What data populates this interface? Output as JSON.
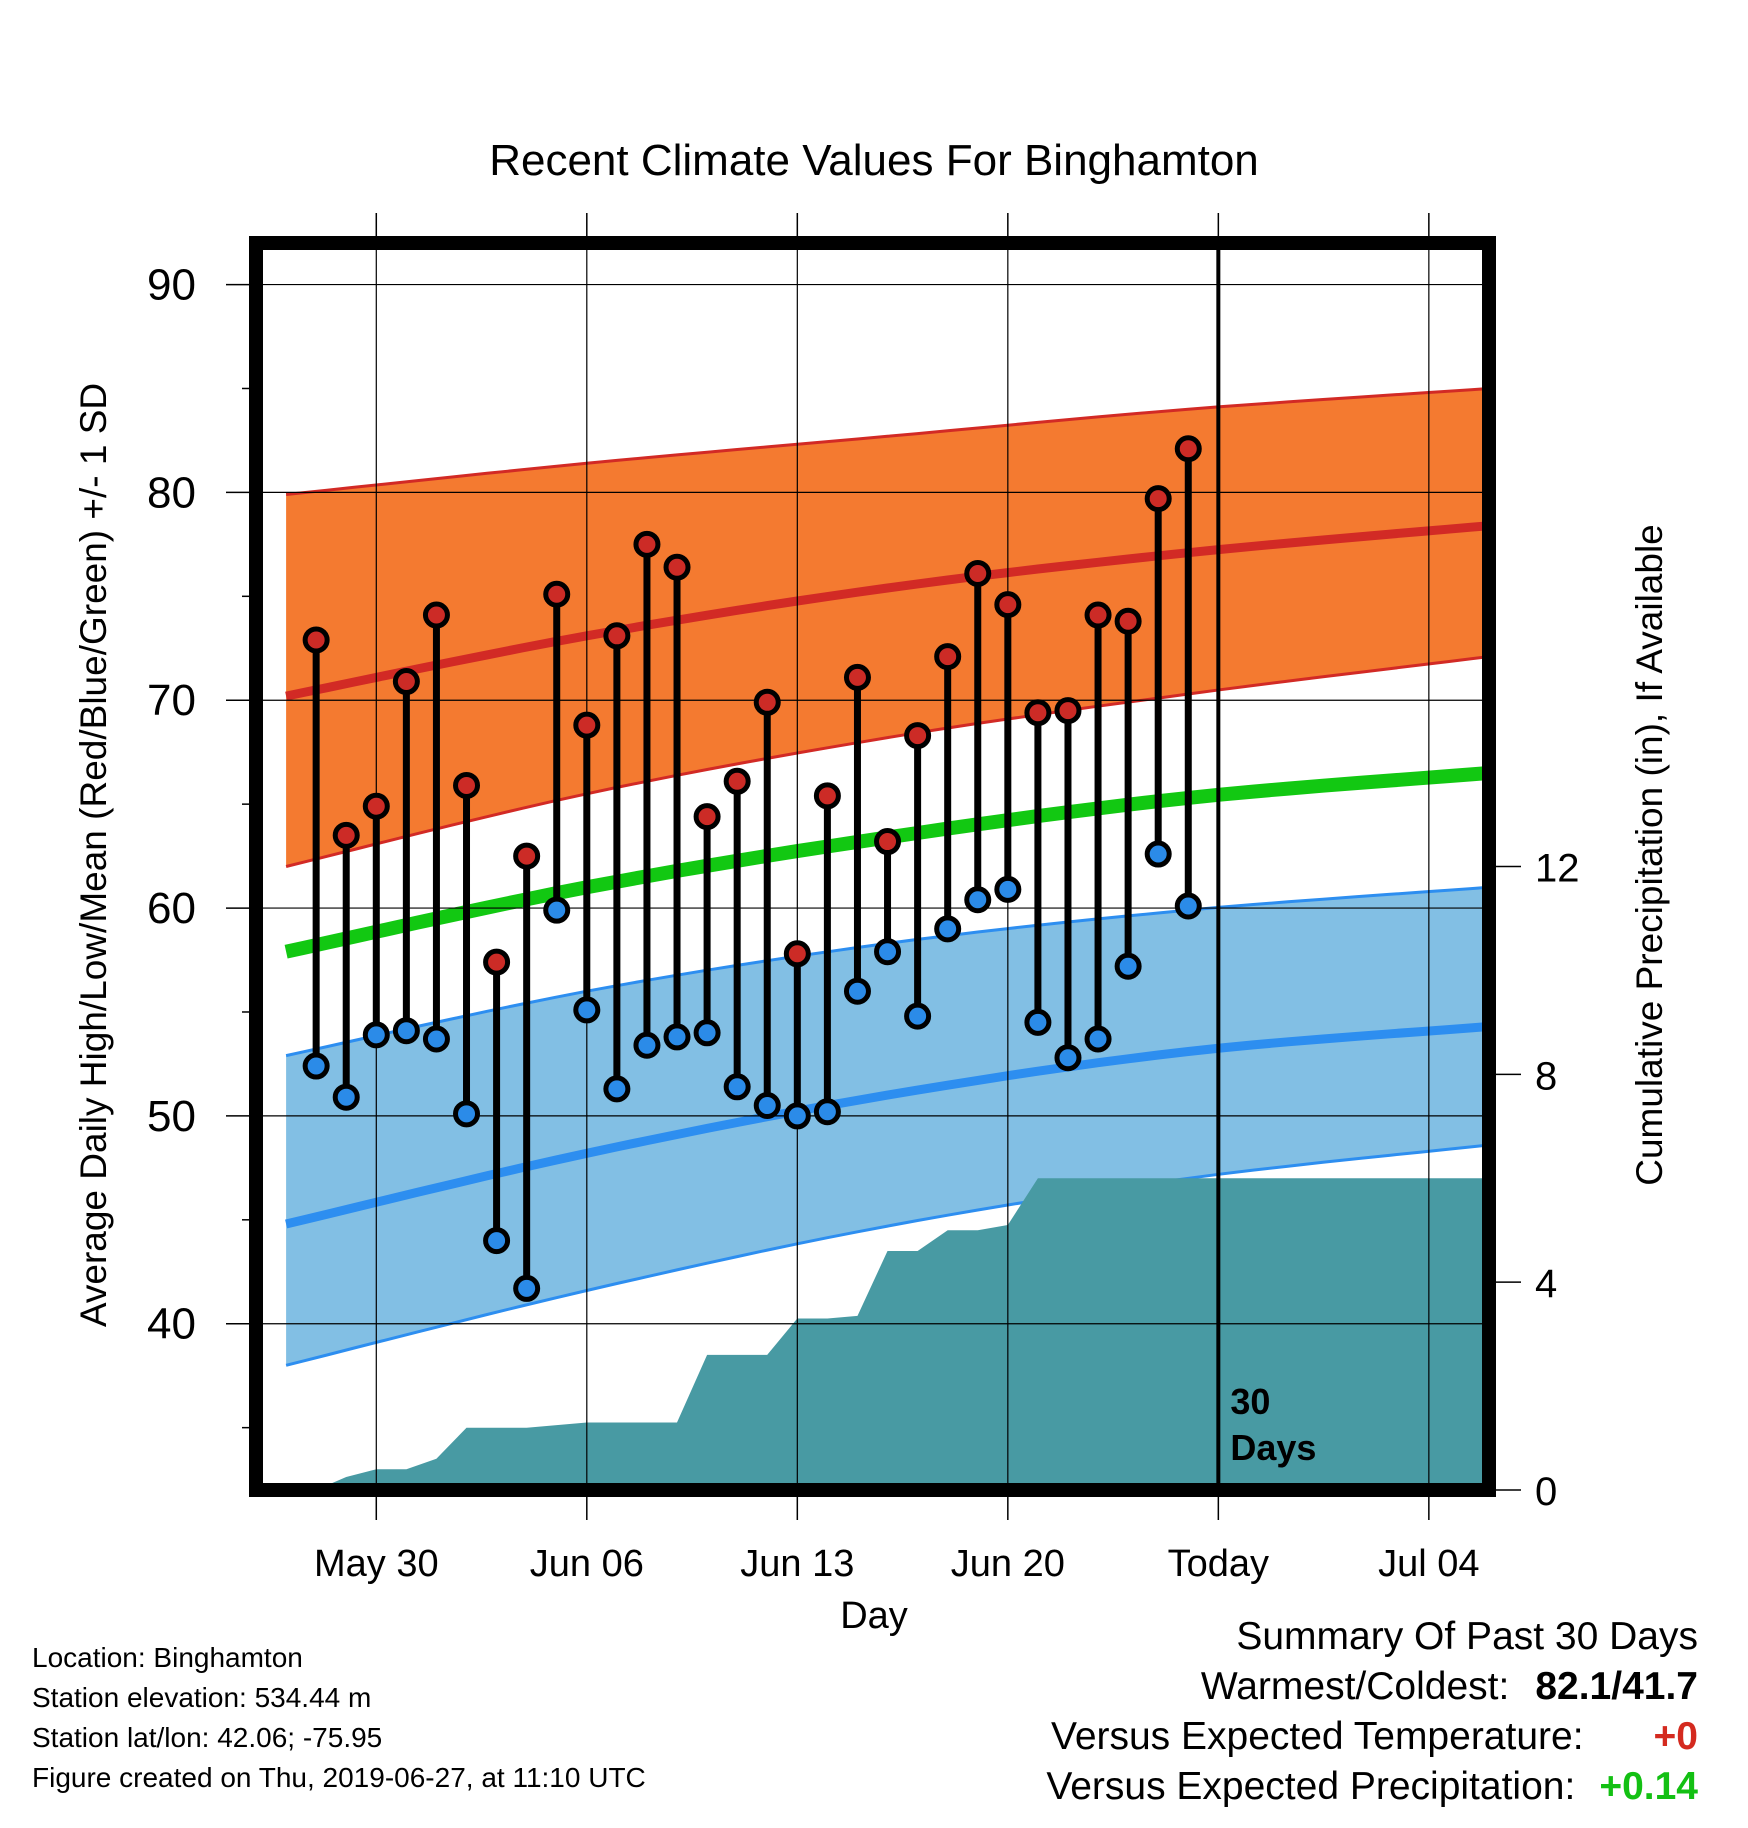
{
  "chart_data": {
    "type": "line",
    "title": "Recent Climate Values For Binghamton",
    "xlabel": "Day",
    "ylabel": "Average Daily High/Low/Mean (Red/Blue/Green) +/- 1 SD",
    "y2label": "Cumulative Precipitation (in), If Available",
    "ylim": [
      32,
      92
    ],
    "y2lim": [
      0,
      24
    ],
    "yticks": [
      40,
      50,
      60,
      70,
      80,
      90
    ],
    "y2ticks": [
      0,
      4,
      8,
      12
    ],
    "xlim": [
      "2019-05-26",
      "2019-07-06"
    ],
    "xtick_labels": [
      {
        "date": "2019-05-30",
        "label": "May 30"
      },
      {
        "date": "2019-06-06",
        "label": "Jun 06"
      },
      {
        "date": "2019-06-13",
        "label": "Jun 13"
      },
      {
        "date": "2019-06-20",
        "label": "Jun 20"
      },
      {
        "date": "2019-06-27",
        "label": "Today"
      },
      {
        "date": "2019-07-04",
        "label": "Jul 04"
      }
    ],
    "grid": true,
    "today_marker": {
      "date": "2019-06-27",
      "label_line1": "30",
      "label_line2": "Days"
    },
    "colors": {
      "high_band": "#f47a30",
      "high_line": "#d22a25",
      "low_band": "#82bfe4",
      "low_line": "#2d8ef0",
      "mean_line": "#12c812",
      "precip": "#489aa3",
      "obs_high_marker": "#cc2b26",
      "obs_low_marker": "#2b8be8"
    },
    "normals": {
      "dates": [
        "2019-05-27",
        "2019-06-06",
        "2019-06-16",
        "2019-06-26",
        "2019-07-06"
      ],
      "high_mean": [
        70.2,
        73.1,
        75.4,
        77.1,
        78.4
      ],
      "high_plus_sd": [
        79.9,
        81.4,
        82.7,
        84.0,
        85.0
      ],
      "high_minus_sd": [
        62.0,
        65.5,
        68.2,
        70.3,
        72.1
      ],
      "low_mean": [
        44.8,
        48.2,
        51.0,
        53.1,
        54.3
      ],
      "low_plus_sd": [
        52.9,
        56.0,
        58.3,
        59.9,
        61.0
      ],
      "low_minus_sd": [
        38.0,
        41.6,
        44.7,
        47.0,
        48.6
      ],
      "daily_mean": [
        57.9,
        61.0,
        63.4,
        65.3,
        66.5
      ]
    },
    "observations": {
      "dates": [
        "2019-05-28",
        "2019-05-29",
        "2019-05-30",
        "2019-05-31",
        "2019-06-01",
        "2019-06-02",
        "2019-06-03",
        "2019-06-04",
        "2019-06-05",
        "2019-06-06",
        "2019-06-07",
        "2019-06-08",
        "2019-06-09",
        "2019-06-10",
        "2019-06-11",
        "2019-06-12",
        "2019-06-13",
        "2019-06-14",
        "2019-06-15",
        "2019-06-16",
        "2019-06-17",
        "2019-06-18",
        "2019-06-19",
        "2019-06-20",
        "2019-06-21",
        "2019-06-22",
        "2019-06-23",
        "2019-06-24",
        "2019-06-25",
        "2019-06-26"
      ],
      "high": [
        72.9,
        63.5,
        64.9,
        70.9,
        74.1,
        65.9,
        57.4,
        62.5,
        75.1,
        68.8,
        73.1,
        77.5,
        76.4,
        64.4,
        66.1,
        69.9,
        57.8,
        65.4,
        71.1,
        63.2,
        68.3,
        72.1,
        76.1,
        74.6,
        69.4,
        69.5,
        74.1,
        73.8,
        79.7,
        82.1
      ],
      "low": [
        52.4,
        50.9,
        53.9,
        54.1,
        53.7,
        50.1,
        44.0,
        41.7,
        59.9,
        55.1,
        51.3,
        53.4,
        53.8,
        54.0,
        51.4,
        50.5,
        50.0,
        50.2,
        56.0,
        57.9,
        54.8,
        59.0,
        60.4,
        60.9,
        54.5,
        52.8,
        53.7,
        57.2,
        62.6,
        60.1
      ]
    },
    "precipitation": {
      "type": "area",
      "dates": [
        "2019-05-27",
        "2019-05-28",
        "2019-05-29",
        "2019-05-30",
        "2019-05-31",
        "2019-06-01",
        "2019-06-02",
        "2019-06-03",
        "2019-06-04",
        "2019-06-05",
        "2019-06-06",
        "2019-06-07",
        "2019-06-08",
        "2019-06-09",
        "2019-06-10",
        "2019-06-11",
        "2019-06-12",
        "2019-06-13",
        "2019-06-14",
        "2019-06-15",
        "2019-06-16",
        "2019-06-17",
        "2019-06-18",
        "2019-06-19",
        "2019-06-20",
        "2019-06-21",
        "2019-06-22",
        "2019-06-23",
        "2019-06-24",
        "2019-06-25",
        "2019-06-26",
        "2019-07-06"
      ],
      "values": [
        0.0,
        0.0,
        0.25,
        0.4,
        0.4,
        0.6,
        1.2,
        1.2,
        1.2,
        1.25,
        1.3,
        1.3,
        1.3,
        1.3,
        2.6,
        2.6,
        2.6,
        3.3,
        3.3,
        3.35,
        4.6,
        4.6,
        5.0,
        5.0,
        5.1,
        6.0,
        6.0,
        6.0,
        6.0,
        6.0,
        6.0,
        6.0
      ]
    }
  },
  "info": {
    "location": "Location: Binghamton",
    "elevation": "Station elevation: 534.44 m",
    "latlon": "Station lat/lon: 42.06; -75.95",
    "created": "Figure created on Thu, 2019-06-27, at 11:10 UTC"
  },
  "summary": {
    "heading": "Summary Of Past 30 Days",
    "warmest_coldest_label": "Warmest/Coldest:",
    "warmest_coldest_value": "82.1/41.7",
    "temp_label": "Versus Expected Temperature:",
    "temp_value": "+0",
    "temp_value_color": "#d42a1f",
    "precip_label": "Versus Expected Precipitation:",
    "precip_value": "+0.14",
    "precip_value_color": "#13c013"
  }
}
